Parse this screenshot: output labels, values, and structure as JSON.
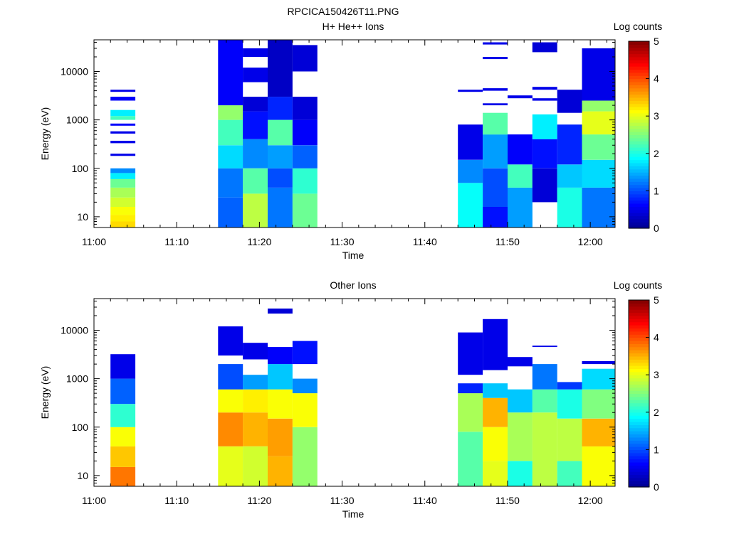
{
  "figure_title": "RPCICA150426T11.PNG",
  "colormap": [
    "#00008f",
    "#0000ff",
    "#0080ff",
    "#00ffff",
    "#80ff80",
    "#ffff00",
    "#ff8000",
    "#ff0000",
    "#800000"
  ],
  "chart_data": [
    {
      "type": "heatmap",
      "title": "H+ He++ Ions",
      "xlabel": "Time",
      "ylabel": "Energy (eV)",
      "xlim": [
        "11:00",
        "12:03"
      ],
      "ylim": [
        6,
        45000
      ],
      "yscale": "log",
      "x_ticks": [
        "11:00",
        "11:10",
        "11:20",
        "11:30",
        "11:40",
        "11:50",
        "12:00"
      ],
      "y_ticks": [
        "10",
        "100",
        "1000",
        "10000"
      ],
      "colorbar": {
        "label": "Log counts",
        "range": [
          0,
          5
        ],
        "ticks": [
          "0",
          "1",
          "2",
          "3",
          "4",
          "5"
        ]
      },
      "columns": [
        {
          "t_start": "11:02",
          "t_end": "11:05",
          "bins": [
            {
              "e_low": 6,
              "e_high": 8,
              "log_counts": 3.3
            },
            {
              "e_low": 8,
              "e_high": 11,
              "log_counts": 3.2
            },
            {
              "e_low": 11,
              "e_high": 16,
              "log_counts": 3.1
            },
            {
              "e_low": 16,
              "e_high": 25,
              "log_counts": 2.9
            },
            {
              "e_low": 25,
              "e_high": 40,
              "log_counts": 2.7
            },
            {
              "e_low": 40,
              "e_high": 60,
              "log_counts": 2.4
            },
            {
              "e_low": 60,
              "e_high": 80,
              "log_counts": 1.8
            },
            {
              "e_low": 80,
              "e_high": 100,
              "log_counts": 1.3
            },
            {
              "e_low": 180,
              "e_high": 200,
              "log_counts": 0.5
            },
            {
              "e_low": 330,
              "e_high": 370,
              "log_counts": 0.5
            },
            {
              "e_low": 520,
              "e_high": 580,
              "log_counts": 0.5
            },
            {
              "e_low": 760,
              "e_high": 840,
              "log_counts": 0.6
            },
            {
              "e_low": 1000,
              "e_high": 1200,
              "log_counts": 2.2
            },
            {
              "e_low": 1200,
              "e_high": 1600,
              "log_counts": 1.8
            },
            {
              "e_low": 2500,
              "e_high": 3000,
              "log_counts": 0.6
            },
            {
              "e_low": 3800,
              "e_high": 4200,
              "log_counts": 0.5
            }
          ]
        },
        {
          "t_start": "11:15",
          "t_end": "11:18",
          "bins": [
            {
              "e_low": 6,
              "e_high": 25,
              "log_counts": 1.1
            },
            {
              "e_low": 25,
              "e_high": 100,
              "log_counts": 1.2
            },
            {
              "e_low": 100,
              "e_high": 300,
              "log_counts": 1.7
            },
            {
              "e_low": 300,
              "e_high": 1000,
              "log_counts": 2.2
            },
            {
              "e_low": 1000,
              "e_high": 2000,
              "log_counts": 2.6
            },
            {
              "e_low": 2000,
              "e_high": 45000,
              "log_counts": 0.6
            }
          ]
        },
        {
          "t_start": "11:18",
          "t_end": "11:21",
          "bins": [
            {
              "e_low": 6,
              "e_high": 30,
              "log_counts": 2.8
            },
            {
              "e_low": 30,
              "e_high": 100,
              "log_counts": 2.3
            },
            {
              "e_low": 100,
              "e_high": 400,
              "log_counts": 1.3
            },
            {
              "e_low": 400,
              "e_high": 1500,
              "log_counts": 0.7
            },
            {
              "e_low": 1500,
              "e_high": 3000,
              "log_counts": 0.4
            },
            {
              "e_low": 6000,
              "e_high": 12000,
              "log_counts": 0.5
            },
            {
              "e_low": 20000,
              "e_high": 30000,
              "log_counts": 0.5
            }
          ]
        },
        {
          "t_start": "11:21",
          "t_end": "11:24",
          "bins": [
            {
              "e_low": 6,
              "e_high": 40,
              "log_counts": 1.2
            },
            {
              "e_low": 40,
              "e_high": 100,
              "log_counts": 1.0
            },
            {
              "e_low": 100,
              "e_high": 300,
              "log_counts": 1.4
            },
            {
              "e_low": 300,
              "e_high": 1000,
              "log_counts": 2.3
            },
            {
              "e_low": 1000,
              "e_high": 3000,
              "log_counts": 0.8
            },
            {
              "e_low": 3000,
              "e_high": 45000,
              "log_counts": 0.3
            }
          ]
        },
        {
          "t_start": "11:24",
          "t_end": "11:27",
          "bins": [
            {
              "e_low": 6,
              "e_high": 30,
              "log_counts": 2.4
            },
            {
              "e_low": 30,
              "e_high": 100,
              "log_counts": 2.1
            },
            {
              "e_low": 100,
              "e_high": 300,
              "log_counts": 1.1
            },
            {
              "e_low": 300,
              "e_high": 1000,
              "log_counts": 0.6
            },
            {
              "e_low": 1000,
              "e_high": 3000,
              "log_counts": 0.4
            },
            {
              "e_low": 10000,
              "e_high": 35000,
              "log_counts": 0.4
            }
          ]
        },
        {
          "t_start": "11:44",
          "t_end": "11:47",
          "bins": [
            {
              "e_low": 6,
              "e_high": 50,
              "log_counts": 1.9
            },
            {
              "e_low": 50,
              "e_high": 150,
              "log_counts": 1.3
            },
            {
              "e_low": 150,
              "e_high": 800,
              "log_counts": 0.5
            },
            {
              "e_low": 3800,
              "e_high": 4200,
              "log_counts": 0.5
            }
          ]
        },
        {
          "t_start": "11:47",
          "t_end": "11:50",
          "bins": [
            {
              "e_low": 6,
              "e_high": 16,
              "log_counts": 0.7
            },
            {
              "e_low": 16,
              "e_high": 100,
              "log_counts": 1.0
            },
            {
              "e_low": 100,
              "e_high": 500,
              "log_counts": 1.4
            },
            {
              "e_low": 500,
              "e_high": 1400,
              "log_counts": 2.3
            },
            {
              "e_low": 2000,
              "e_high": 2200,
              "log_counts": 0.5
            },
            {
              "e_low": 4000,
              "e_high": 4500,
              "log_counts": 0.5
            },
            {
              "e_low": 18000,
              "e_high": 20000,
              "log_counts": 0.5
            },
            {
              "e_low": 36000,
              "e_high": 40000,
              "log_counts": 0.5
            }
          ]
        },
        {
          "t_start": "11:50",
          "t_end": "11:53",
          "bins": [
            {
              "e_low": 6,
              "e_high": 40,
              "log_counts": 1.4
            },
            {
              "e_low": 40,
              "e_high": 120,
              "log_counts": 2.2
            },
            {
              "e_low": 120,
              "e_high": 500,
              "log_counts": 0.6
            },
            {
              "e_low": 2800,
              "e_high": 3200,
              "log_counts": 0.5
            }
          ]
        },
        {
          "t_start": "11:53",
          "t_end": "11:56",
          "bins": [
            {
              "e_low": 20,
              "e_high": 100,
              "log_counts": 0.4
            },
            {
              "e_low": 100,
              "e_high": 400,
              "log_counts": 0.7
            },
            {
              "e_low": 400,
              "e_high": 1300,
              "log_counts": 1.8
            },
            {
              "e_low": 2500,
              "e_high": 2800,
              "log_counts": 0.5
            },
            {
              "e_low": 4200,
              "e_high": 4800,
              "log_counts": 0.5
            },
            {
              "e_low": 25000,
              "e_high": 40000,
              "log_counts": 0.4
            }
          ]
        },
        {
          "t_start": "11:56",
          "t_end": "11:59",
          "bins": [
            {
              "e_low": 6,
              "e_high": 40,
              "log_counts": 2.0
            },
            {
              "e_low": 40,
              "e_high": 120,
              "log_counts": 1.6
            },
            {
              "e_low": 120,
              "e_high": 800,
              "log_counts": 0.8
            },
            {
              "e_low": 1400,
              "e_high": 4200,
              "log_counts": 0.4
            }
          ]
        },
        {
          "t_start": "11:59",
          "t_end": "12:03",
          "bins": [
            {
              "e_low": 6,
              "e_high": 40,
              "log_counts": 1.2
            },
            {
              "e_low": 40,
              "e_high": 150,
              "log_counts": 1.7
            },
            {
              "e_low": 150,
              "e_high": 500,
              "log_counts": 2.4
            },
            {
              "e_low": 500,
              "e_high": 1500,
              "log_counts": 3.0
            },
            {
              "e_low": 1500,
              "e_high": 2500,
              "log_counts": 2.6
            },
            {
              "e_low": 2500,
              "e_high": 30000,
              "log_counts": 0.5
            }
          ]
        }
      ]
    },
    {
      "type": "heatmap",
      "title": "Other Ions",
      "xlabel": "Time",
      "ylabel": "Energy (eV)",
      "xlim": [
        "11:00",
        "12:03"
      ],
      "ylim": [
        6,
        45000
      ],
      "yscale": "log",
      "x_ticks": [
        "11:00",
        "11:10",
        "11:20",
        "11:30",
        "11:40",
        "11:50",
        "12:00"
      ],
      "y_ticks": [
        "10",
        "100",
        "1000",
        "10000"
      ],
      "colorbar": {
        "label": "Log counts",
        "range": [
          0,
          5
        ],
        "ticks": [
          "0",
          "1",
          "2",
          "3",
          "4",
          "5"
        ]
      },
      "columns": [
        {
          "t_start": "11:02",
          "t_end": "11:05",
          "bins": [
            {
              "e_low": 6,
              "e_high": 15,
              "log_counts": 3.8
            },
            {
              "e_low": 15,
              "e_high": 40,
              "log_counts": 3.4
            },
            {
              "e_low": 40,
              "e_high": 100,
              "log_counts": 3.1
            },
            {
              "e_low": 100,
              "e_high": 300,
              "log_counts": 2.1
            },
            {
              "e_low": 300,
              "e_high": 1000,
              "log_counts": 1.1
            },
            {
              "e_low": 1000,
              "e_high": 3200,
              "log_counts": 0.5
            }
          ]
        },
        {
          "t_start": "11:15",
          "t_end": "11:18",
          "bins": [
            {
              "e_low": 6,
              "e_high": 40,
              "log_counts": 3.0
            },
            {
              "e_low": 40,
              "e_high": 200,
              "log_counts": 3.7
            },
            {
              "e_low": 200,
              "e_high": 600,
              "log_counts": 3.1
            },
            {
              "e_low": 600,
              "e_high": 2000,
              "log_counts": 1.0
            },
            {
              "e_low": 3000,
              "e_high": 12000,
              "log_counts": 0.5
            }
          ]
        },
        {
          "t_start": "11:18",
          "t_end": "11:21",
          "bins": [
            {
              "e_low": 6,
              "e_high": 40,
              "log_counts": 2.9
            },
            {
              "e_low": 40,
              "e_high": 200,
              "log_counts": 3.5
            },
            {
              "e_low": 200,
              "e_high": 600,
              "log_counts": 3.2
            },
            {
              "e_low": 600,
              "e_high": 1200,
              "log_counts": 1.4
            },
            {
              "e_low": 2500,
              "e_high": 5500,
              "log_counts": 0.5
            }
          ]
        },
        {
          "t_start": "11:21",
          "t_end": "11:24",
          "bins": [
            {
              "e_low": 6,
              "e_high": 25,
              "log_counts": 3.5
            },
            {
              "e_low": 25,
              "e_high": 150,
              "log_counts": 3.6
            },
            {
              "e_low": 150,
              "e_high": 600,
              "log_counts": 3.1
            },
            {
              "e_low": 600,
              "e_high": 2000,
              "log_counts": 1.6
            },
            {
              "e_low": 2000,
              "e_high": 4500,
              "log_counts": 0.6
            },
            {
              "e_low": 22000,
              "e_high": 28000,
              "log_counts": 0.4
            }
          ]
        },
        {
          "t_start": "11:24",
          "t_end": "11:27",
          "bins": [
            {
              "e_low": 6,
              "e_high": 100,
              "log_counts": 2.6
            },
            {
              "e_low": 100,
              "e_high": 500,
              "log_counts": 3.1
            },
            {
              "e_low": 500,
              "e_high": 1000,
              "log_counts": 1.3
            },
            {
              "e_low": 2000,
              "e_high": 6000,
              "log_counts": 0.7
            }
          ]
        },
        {
          "t_start": "11:44",
          "t_end": "11:47",
          "bins": [
            {
              "e_low": 6,
              "e_high": 80,
              "log_counts": 2.3
            },
            {
              "e_low": 80,
              "e_high": 500,
              "log_counts": 2.7
            },
            {
              "e_low": 500,
              "e_high": 800,
              "log_counts": 0.8
            },
            {
              "e_low": 1200,
              "e_high": 9000,
              "log_counts": 0.5
            }
          ]
        },
        {
          "t_start": "11:47",
          "t_end": "11:50",
          "bins": [
            {
              "e_low": 6,
              "e_high": 20,
              "log_counts": 3.0
            },
            {
              "e_low": 20,
              "e_high": 100,
              "log_counts": 3.1
            },
            {
              "e_low": 100,
              "e_high": 400,
              "log_counts": 3.5
            },
            {
              "e_low": 400,
              "e_high": 800,
              "log_counts": 1.6
            },
            {
              "e_low": 1500,
              "e_high": 17000,
              "log_counts": 0.5
            }
          ]
        },
        {
          "t_start": "11:50",
          "t_end": "11:53",
          "bins": [
            {
              "e_low": 6,
              "e_high": 20,
              "log_counts": 2.0
            },
            {
              "e_low": 20,
              "e_high": 200,
              "log_counts": 2.7
            },
            {
              "e_low": 200,
              "e_high": 600,
              "log_counts": 1.6
            },
            {
              "e_low": 1800,
              "e_high": 2800,
              "log_counts": 0.5
            }
          ]
        },
        {
          "t_start": "11:53",
          "t_end": "11:56",
          "bins": [
            {
              "e_low": 6,
              "e_high": 200,
              "log_counts": 2.8
            },
            {
              "e_low": 200,
              "e_high": 600,
              "log_counts": 2.3
            },
            {
              "e_low": 600,
              "e_high": 2000,
              "log_counts": 1.2
            },
            {
              "e_low": 4500,
              "e_high": 4800,
              "log_counts": 0.5
            }
          ]
        },
        {
          "t_start": "11:56",
          "t_end": "11:59",
          "bins": [
            {
              "e_low": 6,
              "e_high": 20,
              "log_counts": 2.2
            },
            {
              "e_low": 20,
              "e_high": 150,
              "log_counts": 2.8
            },
            {
              "e_low": 150,
              "e_high": 600,
              "log_counts": 2.0
            },
            {
              "e_low": 600,
              "e_high": 850,
              "log_counts": 0.9
            }
          ]
        },
        {
          "t_start": "11:59",
          "t_end": "12:03",
          "bins": [
            {
              "e_low": 6,
              "e_high": 40,
              "log_counts": 3.1
            },
            {
              "e_low": 40,
              "e_high": 150,
              "log_counts": 3.5
            },
            {
              "e_low": 150,
              "e_high": 600,
              "log_counts": 2.5
            },
            {
              "e_low": 600,
              "e_high": 1600,
              "log_counts": 1.7
            },
            {
              "e_low": 2000,
              "e_high": 2300,
              "log_counts": 0.5
            }
          ]
        }
      ]
    }
  ]
}
